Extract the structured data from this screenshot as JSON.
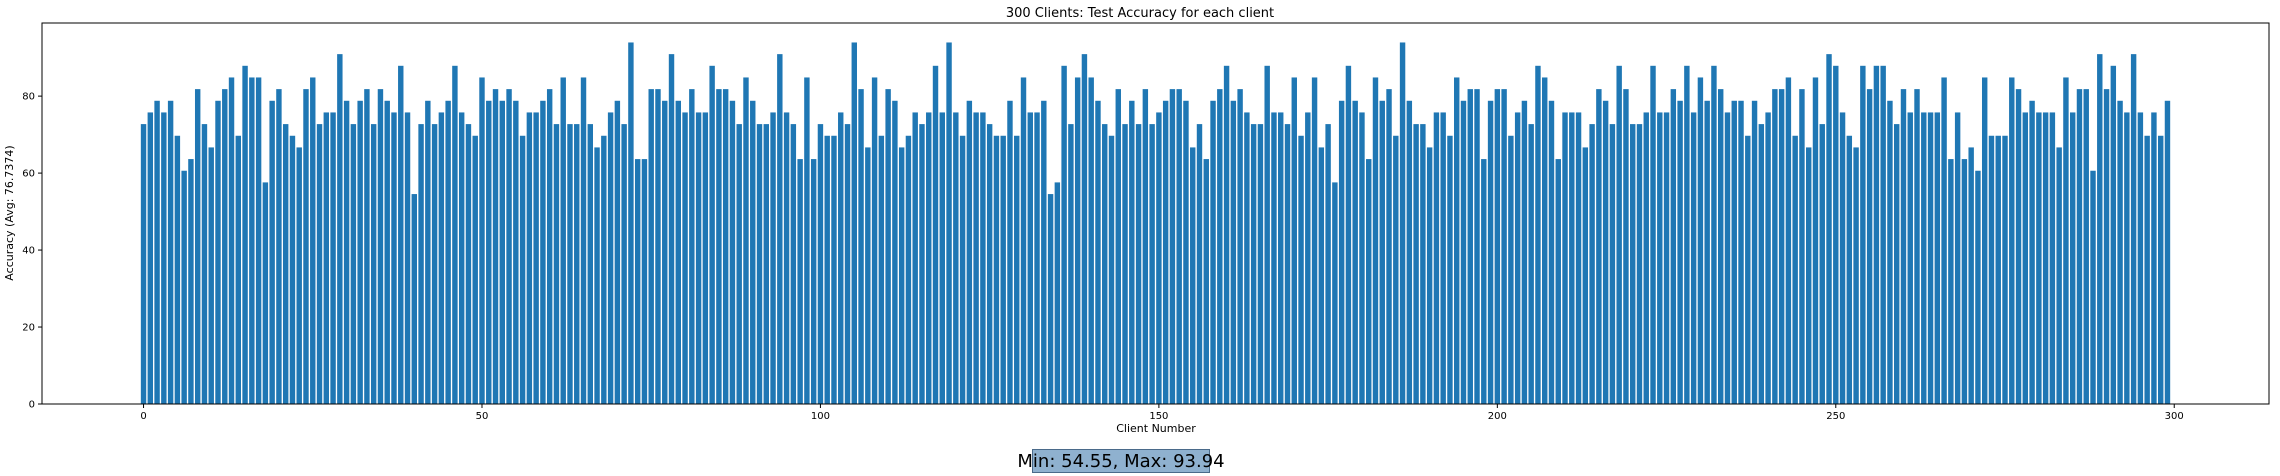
{
  "chart_data": {
    "type": "bar",
    "title": "300 Clients: Test Accuracy for each client",
    "xlabel": "Client Number",
    "ylabel": "Accuracy (Avg: 76.7374)",
    "xlim": [
      -15,
      314
    ],
    "ylim": [
      0,
      99
    ],
    "xticks": [
      0,
      50,
      100,
      150,
      200,
      250,
      300
    ],
    "yticks": [
      0,
      20,
      40,
      60,
      80
    ],
    "grid": false,
    "bar_color": "#1f77b4",
    "x": [
      0,
      1,
      2,
      3,
      4,
      5,
      6,
      7,
      8,
      9,
      10,
      11,
      12,
      13,
      14,
      15,
      16,
      17,
      18,
      19,
      20,
      21,
      22,
      23,
      24,
      25,
      26,
      27,
      28,
      29,
      30,
      31,
      32,
      33,
      34,
      35,
      36,
      37,
      38,
      39,
      40,
      41,
      42,
      43,
      44,
      45,
      46,
      47,
      48,
      49,
      50,
      51,
      52,
      53,
      54,
      55,
      56,
      57,
      58,
      59,
      60,
      61,
      62,
      63,
      64,
      65,
      66,
      67,
      68,
      69,
      70,
      71,
      72,
      73,
      74,
      75,
      76,
      77,
      78,
      79,
      80,
      81,
      82,
      83,
      84,
      85,
      86,
      87,
      88,
      89,
      90,
      91,
      92,
      93,
      94,
      95,
      96,
      97,
      98,
      99,
      100,
      101,
      102,
      103,
      104,
      105,
      106,
      107,
      108,
      109,
      110,
      111,
      112,
      113,
      114,
      115,
      116,
      117,
      118,
      119,
      120,
      121,
      122,
      123,
      124,
      125,
      126,
      127,
      128,
      129,
      130,
      131,
      132,
      133,
      134,
      135,
      136,
      137,
      138,
      139,
      140,
      141,
      142,
      143,
      144,
      145,
      146,
      147,
      148,
      149,
      150,
      151,
      152,
      153,
      154,
      155,
      156,
      157,
      158,
      159,
      160,
      161,
      162,
      163,
      164,
      165,
      166,
      167,
      168,
      169,
      170,
      171,
      172,
      173,
      174,
      175,
      176,
      177,
      178,
      179,
      180,
      181,
      182,
      183,
      184,
      185,
      186,
      187,
      188,
      189,
      190,
      191,
      192,
      193,
      194,
      195,
      196,
      197,
      198,
      199,
      200,
      201,
      202,
      203,
      204,
      205,
      206,
      207,
      208,
      209,
      210,
      211,
      212,
      213,
      214,
      215,
      216,
      217,
      218,
      219,
      220,
      221,
      222,
      223,
      224,
      225,
      226,
      227,
      228,
      229,
      230,
      231,
      232,
      233,
      234,
      235,
      236,
      237,
      238,
      239,
      240,
      241,
      242,
      243,
      244,
      245,
      246,
      247,
      248,
      249,
      250,
      251,
      252,
      253,
      254,
      255,
      256,
      257,
      258,
      259,
      260,
      261,
      262,
      263,
      264,
      265,
      266,
      267,
      268,
      269,
      270,
      271,
      272,
      273,
      274,
      275,
      276,
      277,
      278,
      279,
      280,
      281,
      282,
      283,
      284,
      285,
      286,
      287,
      288,
      289,
      290,
      291,
      292,
      293,
      294,
      295,
      296,
      297,
      298,
      299
    ],
    "values": [
      72.73,
      75.76,
      78.79,
      75.76,
      78.79,
      69.7,
      60.61,
      63.64,
      81.82,
      72.73,
      66.67,
      78.79,
      81.82,
      84.85,
      69.7,
      87.88,
      84.85,
      84.85,
      57.58,
      78.79,
      81.82,
      72.73,
      69.7,
      66.67,
      81.82,
      84.85,
      72.73,
      75.76,
      75.76,
      90.91,
      78.79,
      72.73,
      78.79,
      81.82,
      72.73,
      81.82,
      78.79,
      75.76,
      87.88,
      75.76,
      54.55,
      72.73,
      78.79,
      72.73,
      75.76,
      78.79,
      87.88,
      75.76,
      72.73,
      69.7,
      84.85,
      78.79,
      81.82,
      78.79,
      81.82,
      78.79,
      69.7,
      75.76,
      75.76,
      78.79,
      81.82,
      72.73,
      84.85,
      72.73,
      72.73,
      84.85,
      72.73,
      66.67,
      69.7,
      75.76,
      78.79,
      72.73,
      93.94,
      63.64,
      63.64,
      81.82,
      81.82,
      78.79,
      90.91,
      78.79,
      75.76,
      81.82,
      75.76,
      75.76,
      87.88,
      81.82,
      81.82,
      78.79,
      72.73,
      84.85,
      78.79,
      72.73,
      72.73,
      75.76,
      90.91,
      75.76,
      72.73,
      63.64,
      84.85,
      63.64,
      72.73,
      69.7,
      69.7,
      75.76,
      72.73,
      93.94,
      81.82,
      66.67,
      84.85,
      69.7,
      81.82,
      78.79,
      66.67,
      69.7,
      75.76,
      72.73,
      75.76,
      87.88,
      75.76,
      93.94,
      75.76,
      69.7,
      78.79,
      75.76,
      75.76,
      72.73,
      69.7,
      69.7,
      78.79,
      69.7,
      84.85,
      75.76,
      75.76,
      78.79,
      54.55,
      57.58,
      87.88,
      72.73,
      84.85,
      90.91,
      84.85,
      78.79,
      72.73,
      69.7,
      81.82,
      72.73,
      78.79,
      72.73,
      81.82,
      72.73,
      75.76,
      78.79,
      81.82,
      81.82,
      78.79,
      66.67,
      72.73,
      63.64,
      78.79,
      81.82,
      87.88,
      78.79,
      81.82,
      75.76,
      72.73,
      72.73,
      87.88,
      75.76,
      75.76,
      72.73,
      84.85,
      69.7,
      75.76,
      84.85,
      66.67,
      72.73,
      57.58,
      78.79,
      87.88,
      78.79,
      75.76,
      63.64,
      84.85,
      78.79,
      81.82,
      69.7,
      93.94,
      78.79,
      72.73,
      72.73,
      66.67,
      75.76,
      75.76,
      69.7,
      84.85,
      78.79,
      81.82,
      81.82,
      63.64,
      78.79,
      81.82,
      81.82,
      69.7,
      75.76,
      78.79,
      72.73,
      87.88,
      84.85,
      78.79,
      63.64,
      75.76,
      75.76,
      75.76,
      66.67,
      72.73,
      81.82,
      78.79,
      72.73,
      87.88,
      81.82,
      72.73,
      72.73,
      75.76,
      87.88,
      75.76,
      75.76,
      81.82,
      78.79,
      87.88,
      75.76,
      84.85,
      78.79,
      87.88,
      81.82,
      75.76,
      78.79,
      78.79,
      69.7,
      78.79,
      72.73,
      75.76,
      81.82,
      81.82,
      84.85,
      69.7,
      81.82,
      66.67,
      84.85,
      72.73,
      90.91,
      87.88,
      75.76,
      69.7,
      66.67,
      87.88,
      81.82,
      87.88,
      87.88,
      78.79,
      72.73,
      81.82,
      75.76,
      81.82,
      75.76,
      75.76,
      75.76,
      84.85,
      63.64,
      75.76,
      63.64,
      66.67,
      60.61,
      84.85,
      69.7,
      69.7,
      69.7,
      84.85,
      81.82,
      75.76,
      78.79,
      75.76,
      75.76,
      75.76,
      66.67,
      84.85,
      75.76,
      81.82,
      81.82,
      60.61,
      90.91,
      81.82,
      87.88,
      78.79,
      75.76,
      90.91,
      75.76,
      69.7,
      75.76,
      69.7,
      78.79
    ]
  },
  "stats_box": {
    "text": "Min: 54.55, Max: 93.94"
  }
}
